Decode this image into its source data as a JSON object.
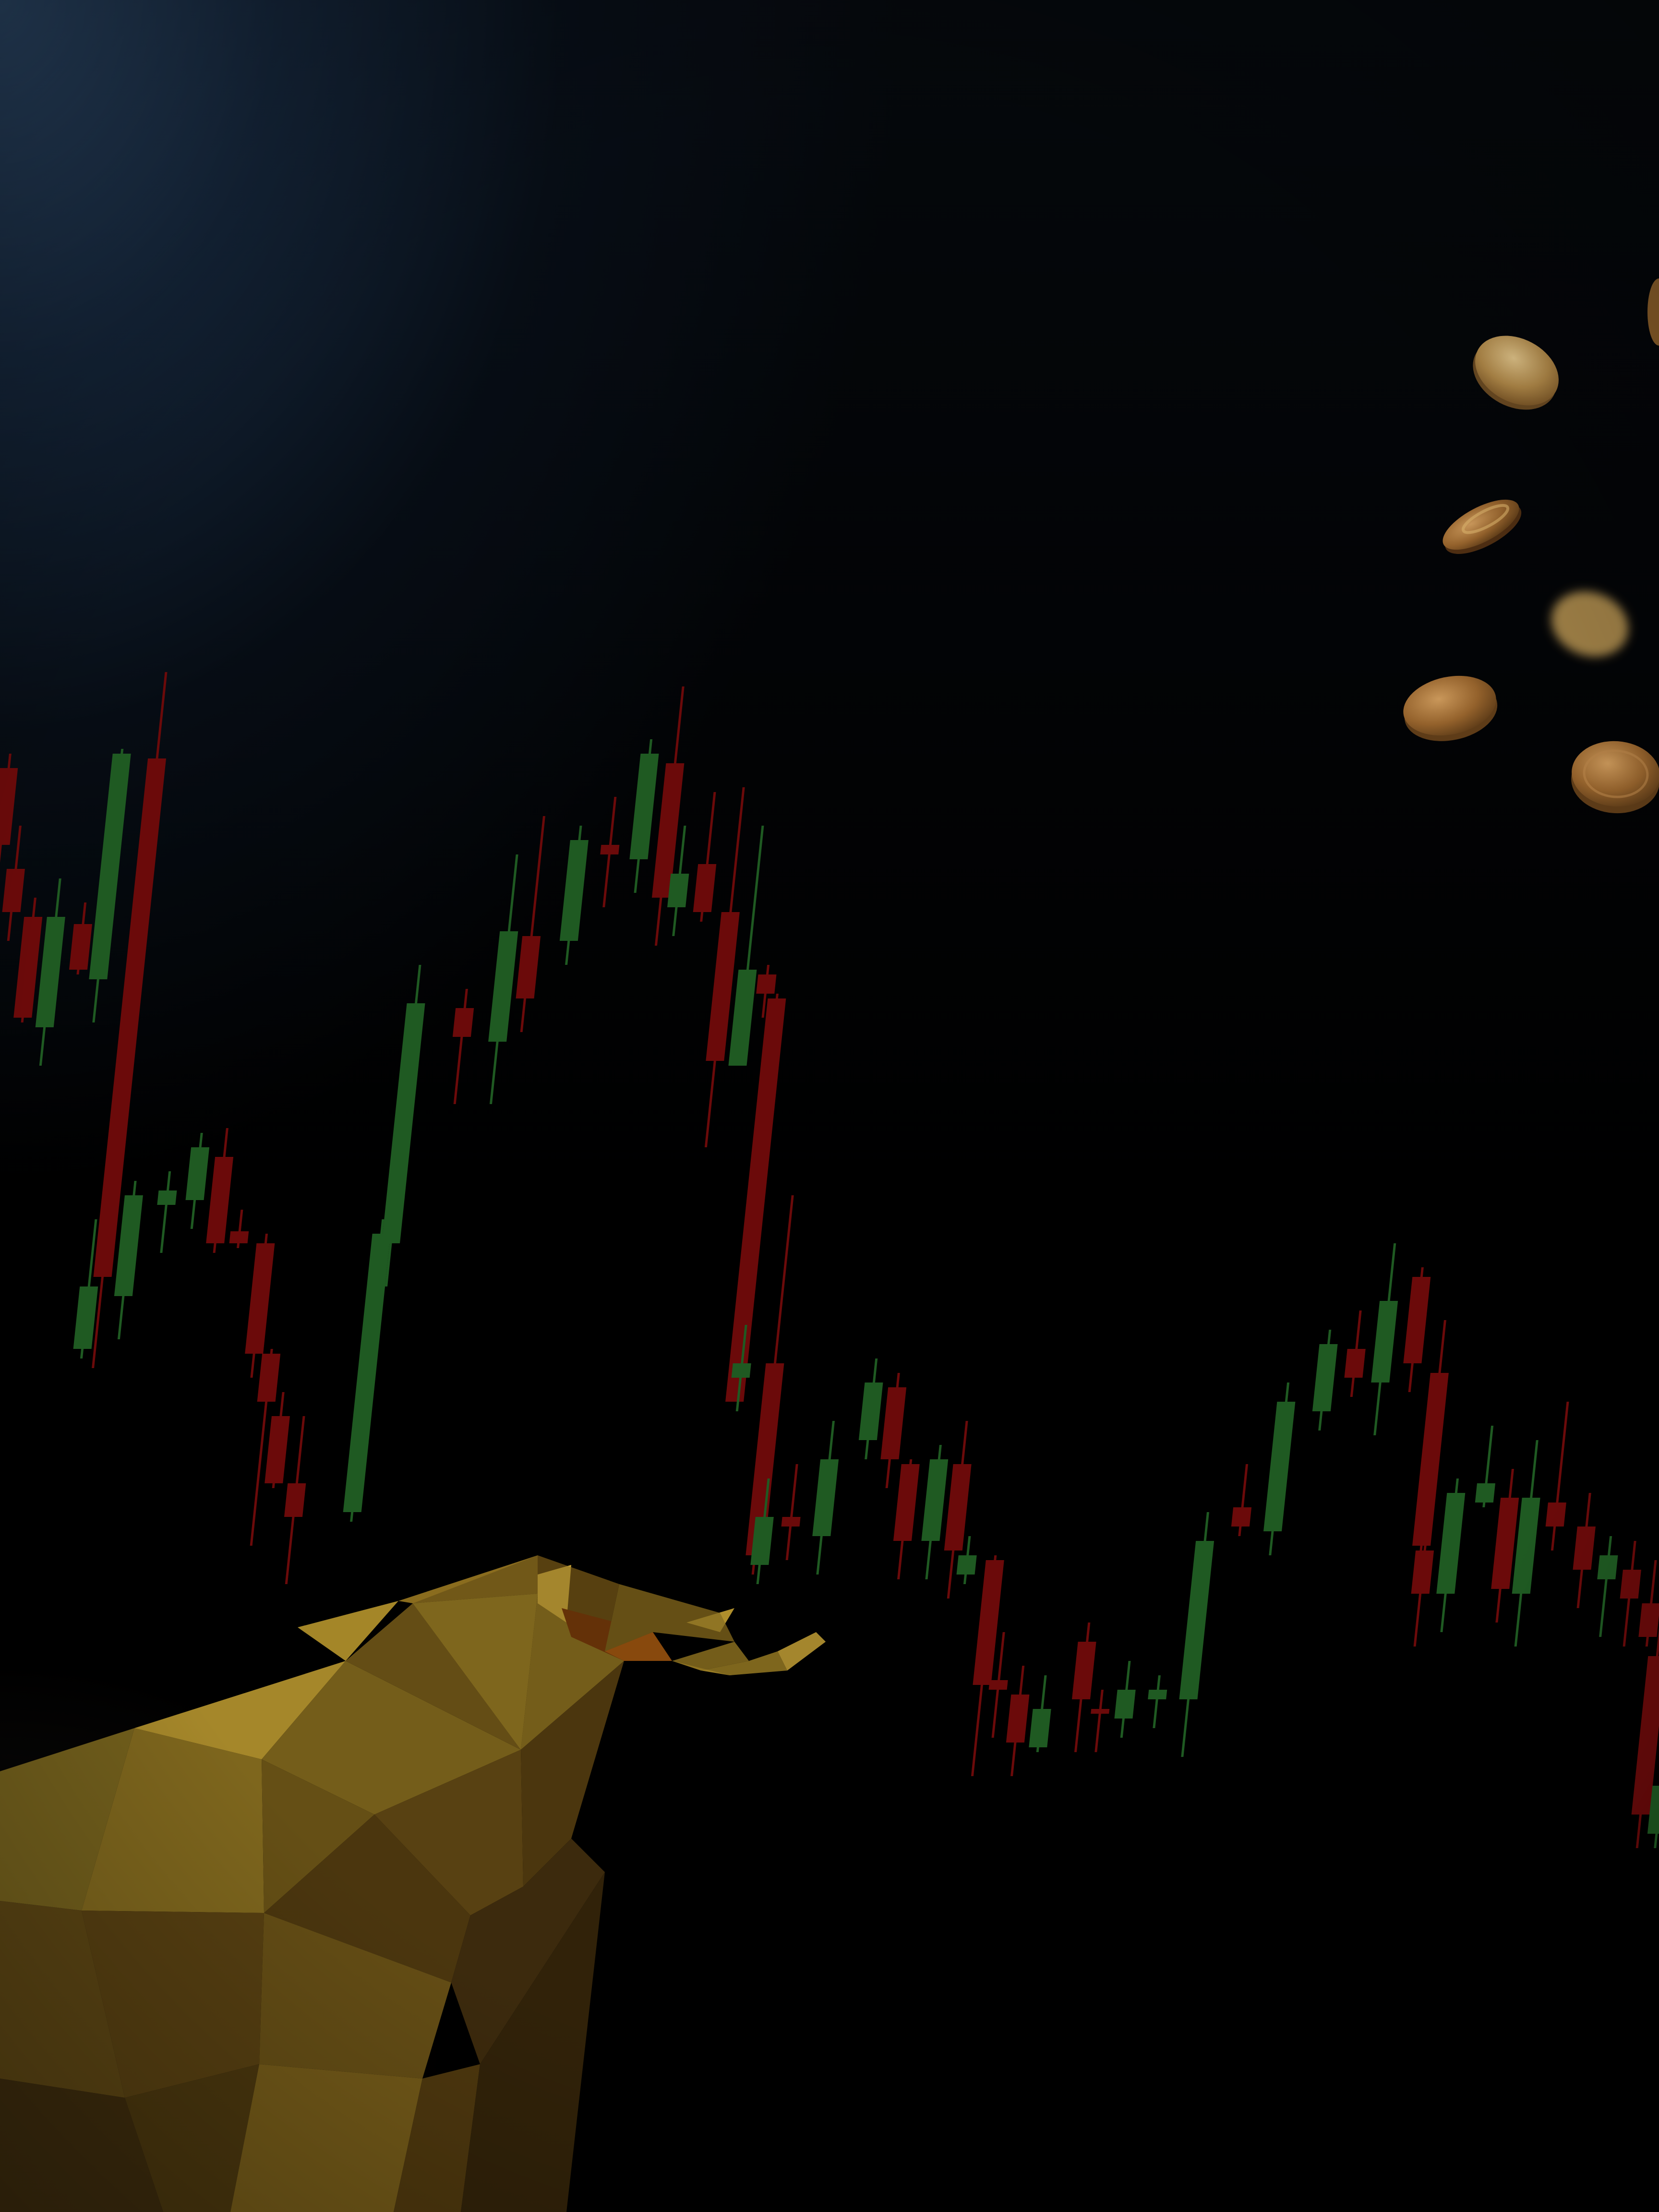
{
  "scene": {
    "description_tag": "stock-market-bull-candlestick-background",
    "palette": {
      "background": "#000000",
      "glow": "#2c4868",
      "bullish_candle": "#1f5a22",
      "bearish_candle": "#6b0a0a",
      "bull_gold": "#9a7a1e",
      "bull_gold_light": "#c9a437",
      "bull_shadow": "#4a3410",
      "coin": "#a67a3a",
      "coin_light": "#d8b878"
    },
    "icons": [
      "bull-figure",
      "coin-icon",
      "candlestick-chart"
    ]
  }
}
